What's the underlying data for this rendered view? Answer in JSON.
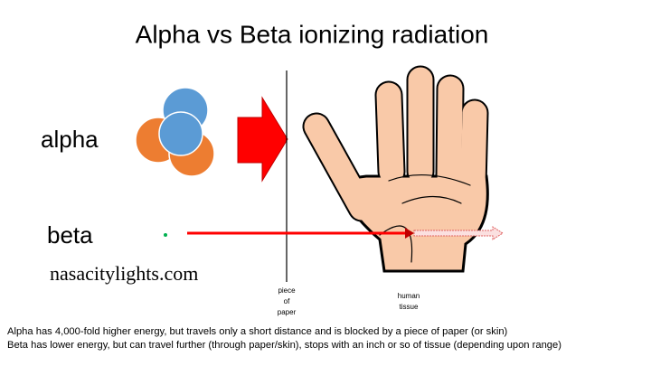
{
  "title": "Alpha vs Beta ionizing radiation",
  "labels": {
    "alpha": "alpha",
    "beta": "beta"
  },
  "watermark": "nasacitylights.com",
  "annotations": {
    "paper": [
      "piece",
      "of",
      "paper"
    ],
    "tissue": [
      "human",
      "tissue"
    ]
  },
  "notes": [
    "Alpha has 4,000-fold higher energy, but travels only a short distance and is blocked by a piece of paper (or skin)",
    "Beta has lower energy, but can travel further (through paper/skin), stops with an inch or so of tissue (depending upon range)"
  ]
}
